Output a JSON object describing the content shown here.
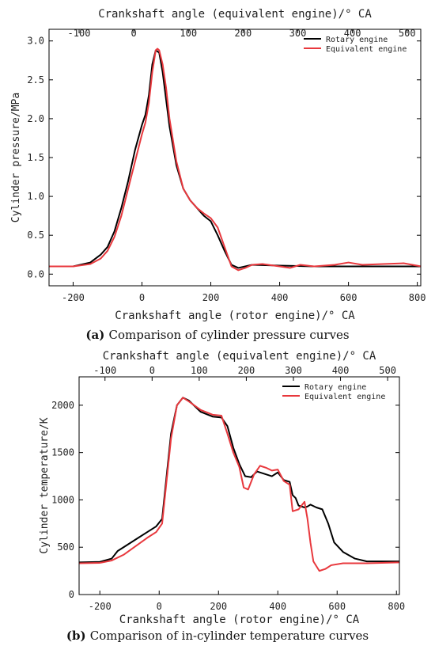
{
  "chart_data": [
    {
      "type": "line",
      "caption_prefix": "(a)",
      "caption": "Comparison of cylinder pressure curves",
      "xlabel": "Crankshaft angle (rotor engine)/° CA",
      "x2label": "Crankshaft angle (equivalent engine)/° CA",
      "ylabel": "Cylinder pressure/MPa",
      "xlim": [
        -270,
        810
      ],
      "ylim": [
        -0.15,
        3.15
      ],
      "xticks": [
        -200,
        0,
        200,
        400,
        600,
        800
      ],
      "x2lim": [
        -155,
        525
      ],
      "x2ticks": [
        -100,
        0,
        100,
        200,
        300,
        400,
        500
      ],
      "yticks": [
        0.0,
        0.5,
        1.0,
        1.5,
        2.0,
        2.5,
        3.0
      ],
      "ytick_labels": [
        "0.0",
        "0.5",
        "1.0",
        "1.5",
        "2.0",
        "2.5",
        "3.0"
      ],
      "legend_position": "top-right",
      "grid": false,
      "series": [
        {
          "name": "Rotary engine",
          "color": "#000000",
          "points": [
            [
              -270,
              0.1
            ],
            [
              -200,
              0.1
            ],
            [
              -150,
              0.15
            ],
            [
              -120,
              0.25
            ],
            [
              -100,
              0.35
            ],
            [
              -80,
              0.55
            ],
            [
              -60,
              0.85
            ],
            [
              -40,
              1.2
            ],
            [
              -20,
              1.6
            ],
            [
              0,
              1.92
            ],
            [
              10,
              2.05
            ],
            [
              20,
              2.3
            ],
            [
              30,
              2.7
            ],
            [
              40,
              2.88
            ],
            [
              50,
              2.85
            ],
            [
              60,
              2.6
            ],
            [
              70,
              2.25
            ],
            [
              80,
              1.9
            ],
            [
              100,
              1.4
            ],
            [
              120,
              1.1
            ],
            [
              140,
              0.95
            ],
            [
              160,
              0.85
            ],
            [
              180,
              0.75
            ],
            [
              200,
              0.68
            ],
            [
              220,
              0.5
            ],
            [
              240,
              0.3
            ],
            [
              260,
              0.12
            ],
            [
              280,
              0.08
            ],
            [
              300,
              0.1
            ],
            [
              320,
              0.12
            ],
            [
              400,
              0.11
            ],
            [
              500,
              0.1
            ],
            [
              600,
              0.1
            ],
            [
              700,
              0.1
            ],
            [
              810,
              0.1
            ]
          ]
        },
        {
          "name": "Equivalent engine",
          "color": "#e8383d",
          "points": [
            [
              -270,
              0.1
            ],
            [
              -200,
              0.1
            ],
            [
              -150,
              0.13
            ],
            [
              -120,
              0.2
            ],
            [
              -100,
              0.3
            ],
            [
              -80,
              0.48
            ],
            [
              -60,
              0.75
            ],
            [
              -40,
              1.1
            ],
            [
              -20,
              1.45
            ],
            [
              0,
              1.8
            ],
            [
              10,
              1.95
            ],
            [
              20,
              2.2
            ],
            [
              30,
              2.6
            ],
            [
              40,
              2.88
            ],
            [
              45,
              2.9
            ],
            [
              50,
              2.88
            ],
            [
              60,
              2.7
            ],
            [
              70,
              2.4
            ],
            [
              80,
              2.0
            ],
            [
              100,
              1.45
            ],
            [
              120,
              1.1
            ],
            [
              140,
              0.95
            ],
            [
              160,
              0.85
            ],
            [
              180,
              0.78
            ],
            [
              200,
              0.72
            ],
            [
              220,
              0.6
            ],
            [
              240,
              0.35
            ],
            [
              260,
              0.1
            ],
            [
              280,
              0.05
            ],
            [
              300,
              0.08
            ],
            [
              320,
              0.12
            ],
            [
              350,
              0.13
            ],
            [
              400,
              0.1
            ],
            [
              430,
              0.08
            ],
            [
              460,
              0.12
            ],
            [
              500,
              0.1
            ],
            [
              560,
              0.12
            ],
            [
              600,
              0.15
            ],
            [
              640,
              0.12
            ],
            [
              700,
              0.13
            ],
            [
              760,
              0.14
            ],
            [
              810,
              0.1
            ]
          ]
        }
      ]
    },
    {
      "type": "line",
      "caption_prefix": "(b)",
      "caption": "Comparison of in-cylinder temperature curves",
      "xlabel": "Crankshaft angle (rotor engine)/° CA",
      "x2label": "Crankshaft angle (equivalent engine)/° CA",
      "ylabel": "Cylinder temperature/K",
      "xlim": [
        -270,
        810
      ],
      "ylim": [
        0,
        2300
      ],
      "xticks": [
        -200,
        0,
        200,
        400,
        600,
        800
      ],
      "x2lim": [
        -155,
        525
      ],
      "x2ticks": [
        -100,
        0,
        100,
        200,
        300,
        400,
        500
      ],
      "yticks": [
        0,
        500,
        1000,
        1500,
        2000
      ],
      "ytick_labels": [
        "0",
        "500",
        "1000",
        "1500",
        "2000"
      ],
      "legend_position": "top-right",
      "grid": false,
      "series": [
        {
          "name": "Rotary engine",
          "color": "#000000",
          "points": [
            [
              -270,
              340
            ],
            [
              -200,
              345
            ],
            [
              -160,
              380
            ],
            [
              -140,
              460
            ],
            [
              -120,
              500
            ],
            [
              -80,
              580
            ],
            [
              -40,
              660
            ],
            [
              -10,
              720
            ],
            [
              10,
              800
            ],
            [
              20,
              1100
            ],
            [
              40,
              1700
            ],
            [
              60,
              2000
            ],
            [
              80,
              2080
            ],
            [
              100,
              2050
            ],
            [
              140,
              1930
            ],
            [
              180,
              1880
            ],
            [
              210,
              1870
            ],
            [
              230,
              1780
            ],
            [
              250,
              1550
            ],
            [
              270,
              1380
            ],
            [
              290,
              1250
            ],
            [
              310,
              1240
            ],
            [
              330,
              1300
            ],
            [
              350,
              1280
            ],
            [
              380,
              1250
            ],
            [
              400,
              1290
            ],
            [
              420,
              1210
            ],
            [
              440,
              1190
            ],
            [
              450,
              1050
            ],
            [
              460,
              1020
            ],
            [
              470,
              940
            ],
            [
              490,
              920
            ],
            [
              500,
              930
            ],
            [
              510,
              950
            ],
            [
              530,
              920
            ],
            [
              550,
              900
            ],
            [
              570,
              750
            ],
            [
              590,
              550
            ],
            [
              620,
              450
            ],
            [
              660,
              380
            ],
            [
              700,
              350
            ],
            [
              810,
              350
            ]
          ]
        },
        {
          "name": "Equivalent engine",
          "color": "#e8383d",
          "points": [
            [
              -270,
              330
            ],
            [
              -200,
              335
            ],
            [
              -160,
              360
            ],
            [
              -120,
              420
            ],
            [
              -80,
              510
            ],
            [
              -40,
              600
            ],
            [
              -10,
              660
            ],
            [
              10,
              750
            ],
            [
              20,
              1050
            ],
            [
              40,
              1650
            ],
            [
              60,
              2000
            ],
            [
              80,
              2080
            ],
            [
              100,
              2040
            ],
            [
              140,
              1950
            ],
            [
              180,
              1900
            ],
            [
              210,
              1890
            ],
            [
              230,
              1700
            ],
            [
              250,
              1500
            ],
            [
              270,
              1350
            ],
            [
              285,
              1130
            ],
            [
              300,
              1110
            ],
            [
              320,
              1270
            ],
            [
              340,
              1360
            ],
            [
              360,
              1340
            ],
            [
              380,
              1310
            ],
            [
              400,
              1320
            ],
            [
              420,
              1200
            ],
            [
              440,
              1160
            ],
            [
              450,
              880
            ],
            [
              470,
              900
            ],
            [
              490,
              980
            ],
            [
              500,
              800
            ],
            [
              510,
              550
            ],
            [
              520,
              350
            ],
            [
              540,
              250
            ],
            [
              560,
              270
            ],
            [
              580,
              310
            ],
            [
              620,
              330
            ],
            [
              700,
              330
            ],
            [
              810,
              340
            ]
          ]
        }
      ]
    }
  ]
}
